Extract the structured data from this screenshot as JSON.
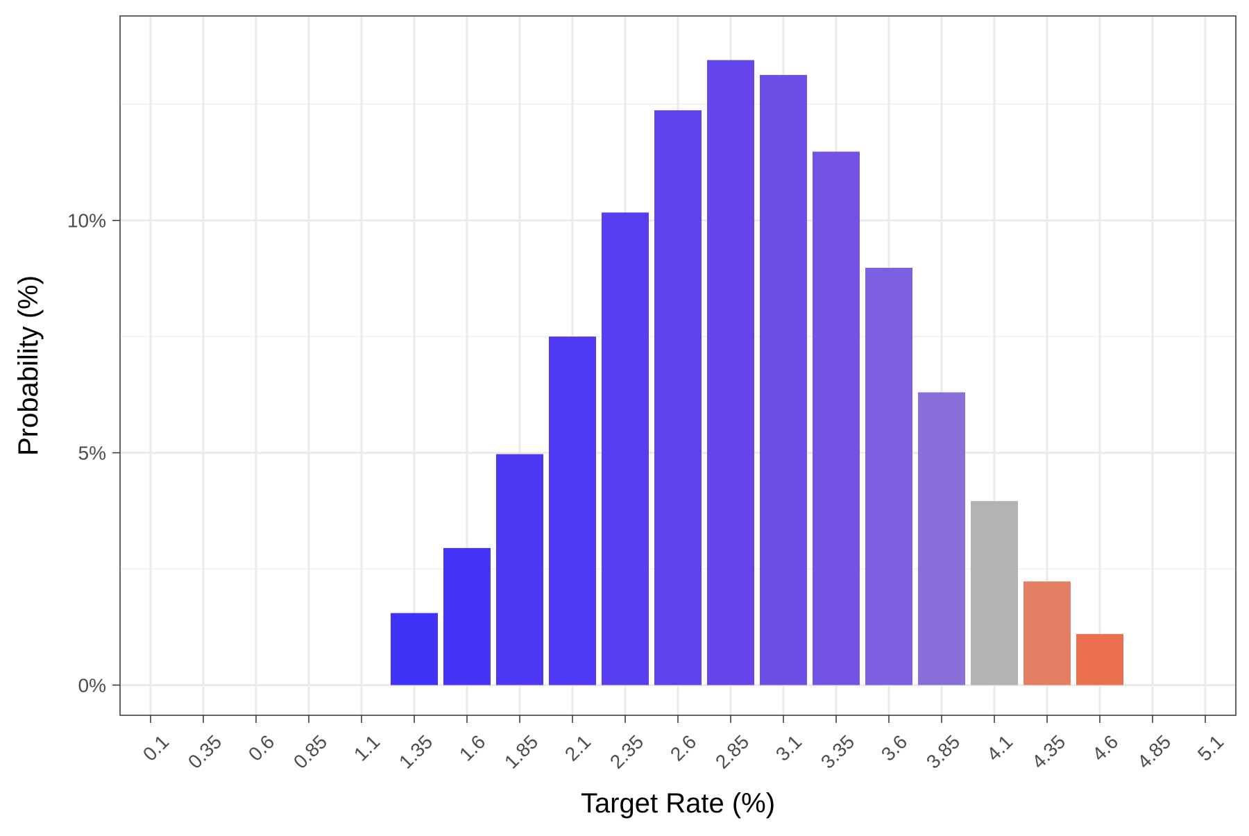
{
  "chart_data": {
    "type": "bar",
    "xlabel": "Target Rate (%)",
    "ylabel": "Probability (%)",
    "categories": [
      "0.1",
      "0.35",
      "0.6",
      "0.85",
      "1.1",
      "1.35",
      "1.6",
      "1.85",
      "2.1",
      "2.35",
      "2.6",
      "2.85",
      "3.1",
      "3.35",
      "3.6",
      "3.85",
      "4.1",
      "4.35",
      "4.6",
      "4.85",
      "5.1"
    ],
    "values": [
      0,
      0,
      0,
      0,
      0,
      1.55,
      2.95,
      4.97,
      7.5,
      10.17,
      12.37,
      13.45,
      13.13,
      11.48,
      8.98,
      6.3,
      3.96,
      2.23,
      1.1,
      0,
      0
    ],
    "bar_colors": [
      "",
      "",
      "",
      "",
      "",
      "#4033f7",
      "#4434f6",
      "#4e38f4",
      "#5039f2",
      "#573ef0",
      "#5d42ee",
      "#6446ea",
      "#6c4fe7",
      "#7353e5",
      "#7d5fe2",
      "#8a6fdb",
      "#b3b3b3",
      "#e57f63",
      "#ea6f4e",
      "",
      ""
    ],
    "yticks": [
      0,
      5,
      10
    ],
    "ytick_labels": [
      "0%",
      "5%",
      "10%"
    ],
    "ylim": [
      -0.65,
      14.4
    ],
    "grid": true,
    "legend": "none"
  }
}
